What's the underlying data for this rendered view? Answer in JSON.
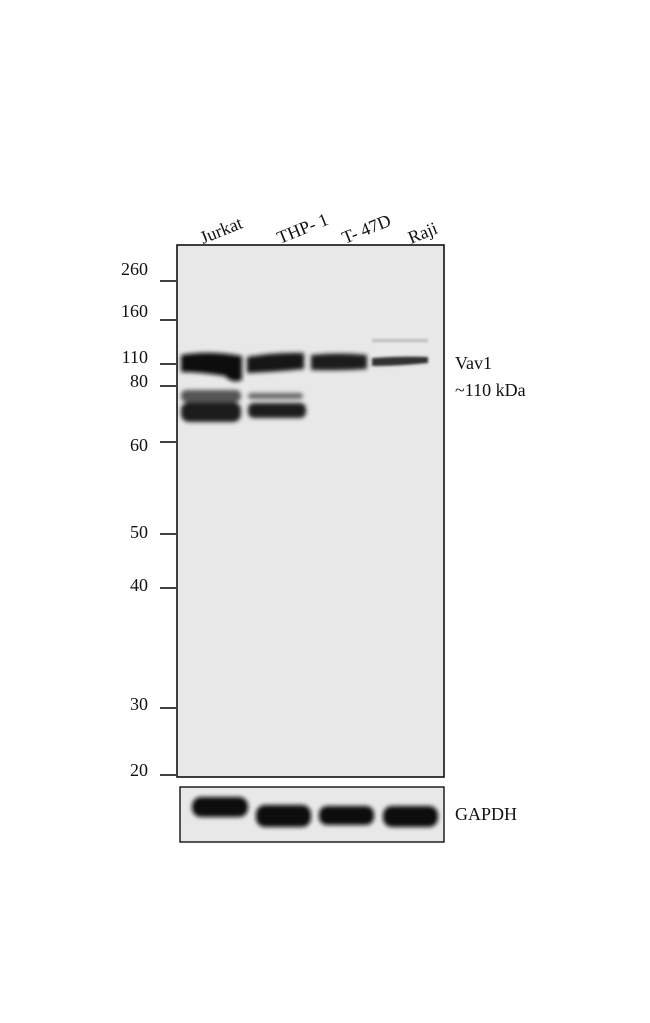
{
  "lanes": [
    "Jurkat",
    "THP- 1",
    "T- 47D",
    "Raji"
  ],
  "markers": [
    260,
    160,
    110,
    80,
    60,
    50,
    40,
    30,
    20
  ],
  "target": {
    "name": "Vav1",
    "size": "~110 kDa"
  },
  "loading_control": "GAPDH"
}
